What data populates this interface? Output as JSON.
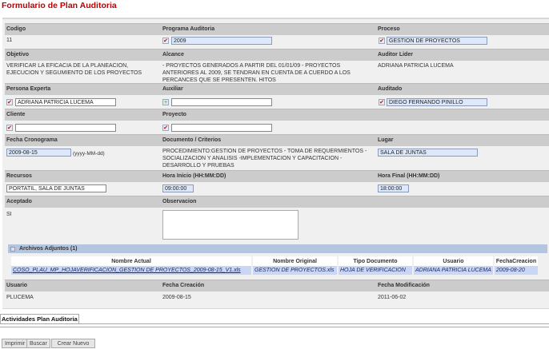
{
  "title": "Formulario de Plan Auditoria",
  "fields": {
    "codigo": {
      "label": "Codigo",
      "value": "11"
    },
    "programa": {
      "label": "Programa Auditoria",
      "value": "2009"
    },
    "proceso": {
      "label": "Proceso",
      "value": "GESTION DE PROYECTOS"
    },
    "objetivo": {
      "label": "Objetivo",
      "value": "VERIFICAR LA EFICACIA DE LA PLANEACION, EJECUCION Y SEGUMIENTO DE LOS PROYECTOS"
    },
    "alcance": {
      "label": "Alcance",
      "value": "- PROYECTOS GENERADOS A PARTIR DEL 01/01/09 - PROYECTOS ANTERIORES AL 2009, SE TENDRAN EN CUENTA DE A CUERDO A LOS PERCANCES QUE SE PRESENTEN. HITOS"
    },
    "auditor_lider": {
      "label": "Auditor Lider",
      "value": "ADRIANA PATRICIA LUCEMA"
    },
    "persona_experta": {
      "label": "Persona Experta",
      "value": "ADRIANA PATRICIA LUCEMA"
    },
    "auxiliar": {
      "label": "Auxiliar",
      "value": ""
    },
    "auditado": {
      "label": "Auditado",
      "value": "DIEGO FERNANDO PINILLO"
    },
    "cliente": {
      "label": "Cliente",
      "value": ""
    },
    "proyecto": {
      "label": "Proyecto",
      "value": ""
    },
    "fecha_cronograma": {
      "label": "Fecha Cronograma",
      "value": "2009-08-15",
      "hint": "(yyyy-MM-dd)"
    },
    "documento": {
      "label": "Documento / Criterios",
      "value": "PROCEDIMIENTO:GESTION DE PROYECTOS - TOMA DE REQUERMIENTOS - SOCIALIZACION Y ANALISIS -IMPLEMENTACION Y CAPACITACION -DESARROLLO Y PRUEBAS"
    },
    "lugar": {
      "label": "Lugar",
      "value": "SALA DE JUNTAS"
    },
    "recursos": {
      "label": "Recursos",
      "value": "PORTATIL, SALA DE JUNTAS"
    },
    "hora_inicio": {
      "label": "Hora Inicio (HH:MM:DD)",
      "value": "09:00:00"
    },
    "hora_final": {
      "label": "Hora Final (HH:MM:DD)",
      "value": "18:00:00"
    },
    "aceptado": {
      "label": "Aceptado",
      "value": "SI"
    },
    "observacion": {
      "label": "Observacion",
      "value": ""
    }
  },
  "archivos": {
    "title": "Archivos Adjuntos (1)",
    "columns": [
      "Nombre Actual",
      "Nombre Original",
      "Tipo Documento",
      "Usuario",
      "FechaCreacion"
    ],
    "rows": [
      [
        "COSO_PLAU_MP_HOJAVERIFICACION_GESTION DE PROYECTOS_2009-08-15_V1.xls",
        "GESTION DE PROYECTOS.xls",
        "HOJA DE VERIFICACION",
        "ADRIANA PATRICIA LUCEMA",
        "2009-08-20"
      ]
    ]
  },
  "audit": {
    "usuario": {
      "label": "Usuario",
      "value": "PLUCEMA"
    },
    "fecha_creacion": {
      "label": "Fecha Creación",
      "value": "2009-08-15"
    },
    "fecha_modificacion": {
      "label": "Fecha Modificación",
      "value": "2011-06-02"
    }
  },
  "actividades_tab": "Actividades Plan Auditoria",
  "buttons": {
    "imprimir": "Imprimir",
    "buscar": "Buscar",
    "crear": "Crear Nuevo"
  }
}
